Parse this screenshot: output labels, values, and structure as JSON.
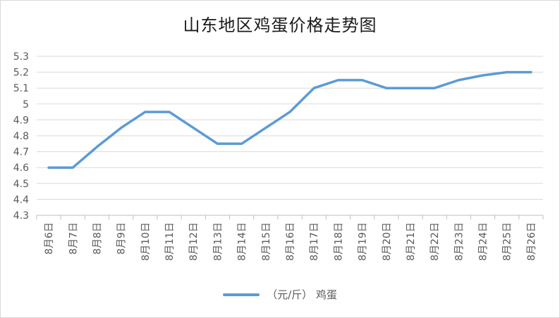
{
  "chart_data": {
    "type": "line",
    "title": "山东地区鸡蛋价格走势图",
    "categories": [
      "8月6日",
      "8月7日",
      "8月8日",
      "8月9日",
      "8月10日",
      "8月11日",
      "8月12日",
      "8月13日",
      "8月14日",
      "8月15日",
      "8月16日",
      "8月17日",
      "8月18日",
      "8月19日",
      "8月20日",
      "8月21日",
      "8月22日",
      "8月23日",
      "8月24日",
      "8月25日",
      "8月26日"
    ],
    "series": [
      {
        "name": "（元/斤） 鸡蛋",
        "values": [
          4.6,
          4.6,
          4.73,
          4.85,
          4.95,
          4.95,
          4.85,
          4.75,
          4.75,
          4.85,
          4.95,
          5.1,
          5.15,
          5.15,
          5.1,
          5.1,
          5.1,
          5.15,
          5.18,
          5.2,
          5.2
        ],
        "color": "#5b9bd5"
      }
    ],
    "yticks": [
      "4.3",
      "4.4",
      "4.5",
      "4.6",
      "4.7",
      "4.8",
      "4.9",
      "5",
      "5.1",
      "5.2",
      "5.3"
    ],
    "ylim": [
      4.3,
      5.3
    ],
    "grid": true,
    "legend": "bottom"
  }
}
